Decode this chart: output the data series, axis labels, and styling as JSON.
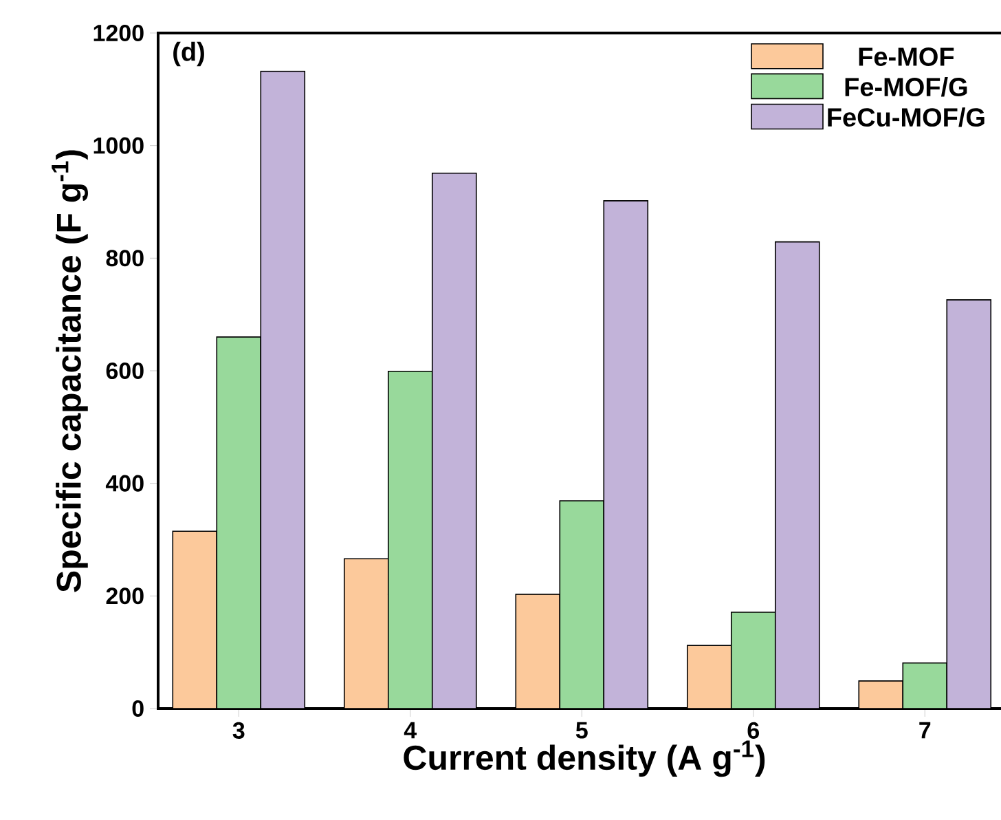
{
  "chart_data": {
    "type": "bar",
    "xlabel": "Current density (A g$^{-1}$)",
    "ylabel": "Specific capacitance (F g$^{-1}$)",
    "annotations": [
      "(d)"
    ],
    "categories": [
      "3",
      "4",
      "5",
      "6",
      "7"
    ],
    "series": [
      {
        "name": "Fe-MOF",
        "color": "#fcc99b",
        "values": [
          315,
          266,
          203,
          112,
          49
        ]
      },
      {
        "name": "Fe-MOF/G",
        "color": "#98d99b",
        "values": [
          660,
          599,
          369,
          171,
          81
        ]
      },
      {
        "name": "FeCu-MOF/G",
        "color": "#c2b3d9",
        "values": [
          1132,
          951,
          902,
          829,
          726
        ]
      }
    ],
    "ylim": [
      0,
      1200
    ],
    "yticks": [
      0,
      200,
      400,
      600,
      800,
      1000,
      1200
    ],
    "grid": false,
    "legend": "top right"
  }
}
